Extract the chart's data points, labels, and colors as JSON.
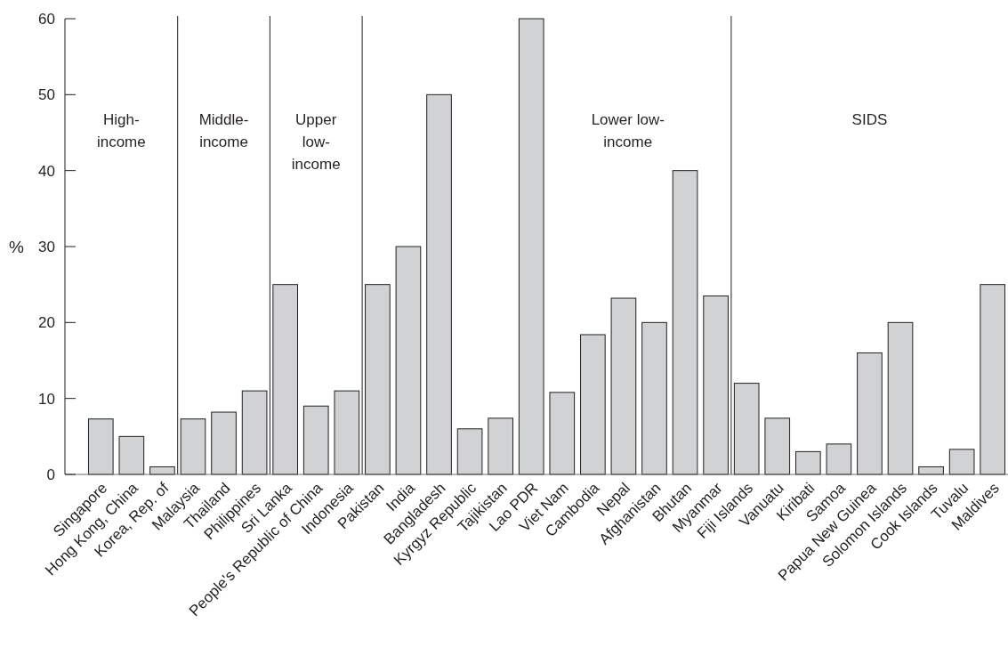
{
  "chart_data": {
    "type": "bar",
    "ylabel": "%",
    "categories": [
      "Singapore",
      "Hong Kong, China",
      "Korea, Rep. of",
      "Malaysia",
      "Thailand",
      "Philippines",
      "Sri Lanka",
      "People's Republic of China",
      "Indonesia",
      "Pakistan",
      "India",
      "Bangladesh",
      "Kyrgyz Republic",
      "Tajikistan",
      "Lao PDR",
      "Viet Nam",
      "Cambodia",
      "Nepal",
      "Afghanistan",
      "Bhutan",
      "Myanmar",
      "Fiji Islands",
      "Vanuatu",
      "Kiribati",
      "Samoa",
      "Papua New Guinea",
      "Solomon Islands",
      "Cook Islands",
      "Tuvalu",
      "Maldives"
    ],
    "values": [
      7.3,
      5,
      1,
      7.3,
      8.2,
      11,
      25,
      9,
      11,
      25,
      30,
      50,
      6,
      7.4,
      60,
      10.8,
      18.4,
      23.2,
      20,
      40,
      23.5,
      12,
      7.4,
      3,
      4,
      16,
      20,
      1,
      3.3,
      25
    ],
    "color": "#d1d2d4",
    "ylim": [
      0,
      60
    ],
    "yticks": [
      0,
      10,
      20,
      30,
      40,
      50,
      60
    ],
    "annotations": [
      "High-\nincome",
      "Middle-\nincome",
      "Upper\nlow-\nincome",
      "Lower low-\nincome",
      "SIDS"
    ]
  }
}
